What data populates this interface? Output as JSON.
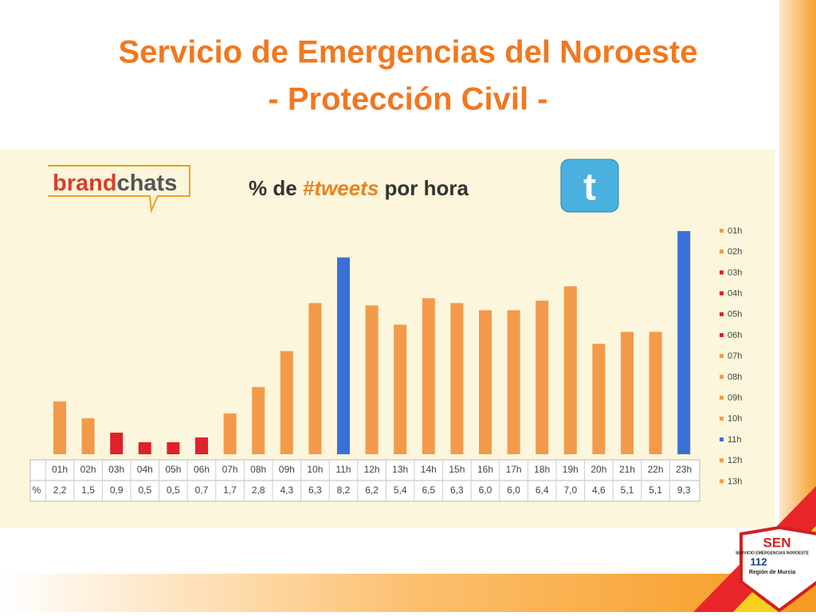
{
  "header": {
    "title_line1": "Servicio de Emergencias del Noroeste",
    "title_line2": "- Protección Civil -"
  },
  "logo": {
    "brand_part1": "brand",
    "brand_part2": "chats",
    "sen": "SEN",
    "sen_sub": "SERVICIO EMERGENCIAS NOROESTE",
    "number": "112",
    "region": "Región de Murcia"
  },
  "chart_data": {
    "type": "bar",
    "title_part1": "% de ",
    "title_part2": "#tweets",
    "title_part3": " por hora",
    "row_label": "%",
    "categories": [
      "01h",
      "02h",
      "03h",
      "04h",
      "05h",
      "06h",
      "07h",
      "08h",
      "09h",
      "10h",
      "11h",
      "12h",
      "13h",
      "14h",
      "15h",
      "16h",
      "17h",
      "18h",
      "19h",
      "20h",
      "21h",
      "22h",
      "23h"
    ],
    "values": [
      2.2,
      1.5,
      0.9,
      0.5,
      0.5,
      0.7,
      1.7,
      2.8,
      4.3,
      6.3,
      8.2,
      6.2,
      5.4,
      6.5,
      6.3,
      6.0,
      6.0,
      6.4,
      7.0,
      4.6,
      5.1,
      5.1,
      9.3
    ],
    "value_labels": [
      "2,2",
      "1,5",
      "0,9",
      "0,5",
      "0,5",
      "0,7",
      "1,7",
      "2,8",
      "4,3",
      "6,3",
      "8,2",
      "6,2",
      "5,4",
      "6,5",
      "6,3",
      "6,0",
      "6,0",
      "6,4",
      "7,0",
      "4,6",
      "5,1",
      "5,1",
      "9,3"
    ],
    "colors": [
      "#f39a4a",
      "#f39a4a",
      "#e0202a",
      "#e0202a",
      "#e0202a",
      "#e0202a",
      "#f39a4a",
      "#f39a4a",
      "#f39a4a",
      "#f39a4a",
      "#3b6fd8",
      "#f39a4a",
      "#f39a4a",
      "#f39a4a",
      "#f39a4a",
      "#f39a4a",
      "#f39a4a",
      "#f39a4a",
      "#f39a4a",
      "#f39a4a",
      "#f39a4a",
      "#f39a4a",
      "#3b6fd8"
    ],
    "legend_count": 13
  }
}
